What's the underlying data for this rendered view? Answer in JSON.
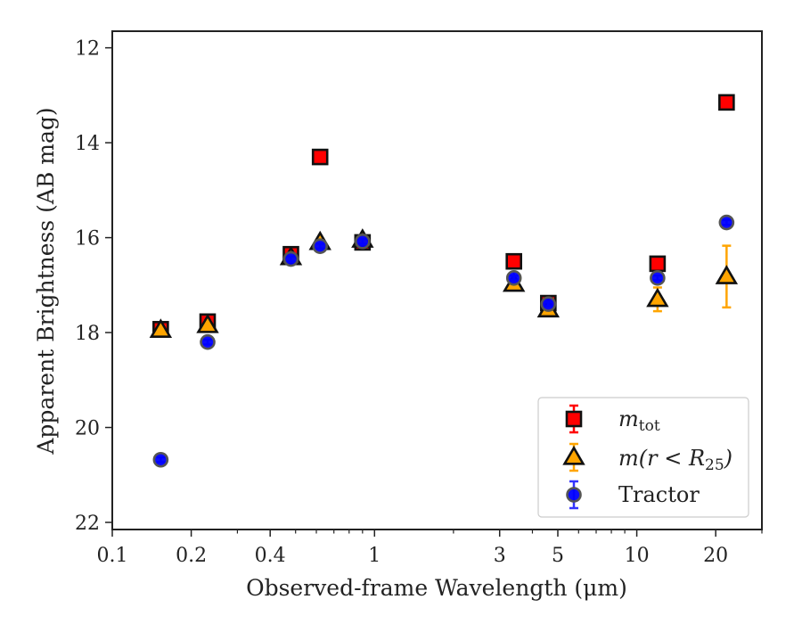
{
  "chart_data": {
    "type": "scatter",
    "xlabel": "Observed-frame Wavelength (μm)",
    "ylabel": "Apparent Brightness (AB mag)",
    "xscale": "log",
    "xlim": [
      0.1,
      30
    ],
    "ylim": [
      22.15,
      11.65
    ],
    "y_inverted": true,
    "xticks": [
      {
        "value": 0.1,
        "label": "0.1"
      },
      {
        "value": 0.2,
        "label": "0.2"
      },
      {
        "value": 0.4,
        "label": "0.4"
      },
      {
        "value": 1,
        "label": "1"
      },
      {
        "value": 3,
        "label": "3"
      },
      {
        "value": 5,
        "label": "5"
      },
      {
        "value": 10,
        "label": "10"
      },
      {
        "value": 20,
        "label": "20"
      }
    ],
    "xminor": [
      0.3,
      0.5,
      0.6,
      0.7,
      0.8,
      0.9,
      2,
      4,
      6,
      7,
      8,
      9,
      30
    ],
    "yticks": [
      {
        "value": 12,
        "label": "12"
      },
      {
        "value": 14,
        "label": "14"
      },
      {
        "value": 16,
        "label": "16"
      },
      {
        "value": 18,
        "label": "18"
      },
      {
        "value": 20,
        "label": "20"
      },
      {
        "value": 22,
        "label": "22"
      }
    ],
    "grid": false,
    "legend_position": "bottom-right",
    "series": [
      {
        "name": "m_tot",
        "marker": "square",
        "color": "#ff0000",
        "edge": "#111111",
        "errcolor": "#ff0000",
        "points": [
          {
            "x": 0.153,
            "y": 17.93,
            "err": 0.12
          },
          {
            "x": 0.231,
            "y": 17.77,
            "err": 0.12
          },
          {
            "x": 0.48,
            "y": 16.35,
            "err": 0.08
          },
          {
            "x": 0.62,
            "y": 14.3,
            "err": 0.05
          },
          {
            "x": 0.9,
            "y": 16.1,
            "err": 0.05
          },
          {
            "x": 3.4,
            "y": 16.5,
            "err": 0.05
          },
          {
            "x": 4.6,
            "y": 17.38,
            "err": 0.05
          },
          {
            "x": 12.0,
            "y": 16.55,
            "err": 0.05
          },
          {
            "x": 22.0,
            "y": 13.15,
            "err": 0.05
          }
        ]
      },
      {
        "name": "m(r < R25)",
        "marker": "triangle",
        "color": "#ffa500",
        "edge": "#111111",
        "errcolor": "#ffa500",
        "points": [
          {
            "x": 0.153,
            "y": 17.95,
            "err": 0.08
          },
          {
            "x": 0.231,
            "y": 17.85,
            "err": 0.08
          },
          {
            "x": 0.48,
            "y": 16.42,
            "err": 0.05
          },
          {
            "x": 0.62,
            "y": 16.1,
            "err": 0.05
          },
          {
            "x": 0.9,
            "y": 16.05,
            "err": 0.05
          },
          {
            "x": 3.4,
            "y": 16.98,
            "err": 0.1
          },
          {
            "x": 4.6,
            "y": 17.52,
            "err": 0.08
          },
          {
            "x": 12.0,
            "y": 17.3,
            "err": 0.25
          },
          {
            "x": 22.0,
            "y": 16.82,
            "err": 0.65
          }
        ]
      },
      {
        "name": "Tractor",
        "marker": "circle",
        "color": "#0000ff",
        "edge": "#555555",
        "errcolor": "#3333ff",
        "points": [
          {
            "x": 0.153,
            "y": 20.68,
            "err": 0.05
          },
          {
            "x": 0.231,
            "y": 18.2,
            "err": 0.05
          },
          {
            "x": 0.48,
            "y": 16.45,
            "err": 0.05
          },
          {
            "x": 0.62,
            "y": 16.18,
            "err": 0.05
          },
          {
            "x": 0.9,
            "y": 16.08,
            "err": 0.05
          },
          {
            "x": 3.4,
            "y": 16.85,
            "err": 0.05
          },
          {
            "x": 4.6,
            "y": 17.4,
            "err": 0.05
          },
          {
            "x": 12.0,
            "y": 16.85,
            "err": 0.05
          },
          {
            "x": 22.0,
            "y": 15.68,
            "err": 0.05
          }
        ]
      }
    ]
  },
  "legend": {
    "mtot_main": "m",
    "mtot_sub": "tot",
    "mr_text": "m(r < R",
    "mr_sub": "25",
    "mr_close": ")",
    "tractor_label": "Tractor"
  }
}
